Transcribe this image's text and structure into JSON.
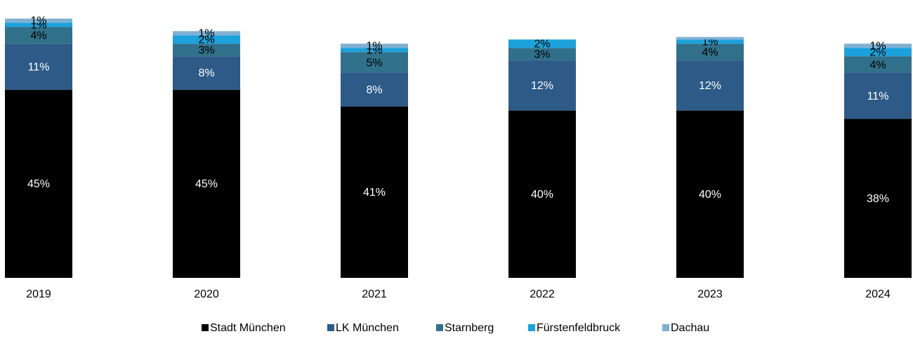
{
  "chart_data": {
    "type": "stacked_bar",
    "categories": [
      "2019",
      "2020",
      "2021",
      "2022",
      "2023",
      "2024"
    ],
    "ylim": [
      0,
      62
    ],
    "series": [
      {
        "name": "Stadt München",
        "color": "#000000",
        "values": [
          45,
          45,
          41,
          40,
          40,
          38
        ],
        "value_labels": [
          "45%",
          "45%",
          "41%",
          "40%",
          "40%",
          "38%"
        ]
      },
      {
        "name": "LK München",
        "color": "#2e5a88",
        "values": [
          11,
          8,
          8,
          12,
          12,
          11
        ],
        "value_labels": [
          "11%",
          "8%",
          "8%",
          "12%",
          "12%",
          "11%"
        ]
      },
      {
        "name": "Starnberg",
        "color": "#31708a",
        "values": [
          4,
          3,
          5,
          3,
          4,
          4
        ],
        "value_labels": [
          "4%",
          "3%",
          "5%",
          "3%",
          "4%",
          "4%"
        ]
      },
      {
        "name": "Fürstenfeldbruck",
        "color": "#1ba1db",
        "values": [
          1,
          2,
          1,
          2,
          1,
          2
        ],
        "value_labels": [
          "1%",
          "2%",
          "1%",
          "2%",
          "1%",
          "2%"
        ]
      },
      {
        "name": "Dachau",
        "color": "#7fb0d3",
        "values": [
          1,
          1,
          1,
          null,
          0.6,
          1
        ],
        "value_labels": [
          "1%",
          "1%",
          "1%",
          null,
          null,
          "1%"
        ]
      }
    ]
  }
}
